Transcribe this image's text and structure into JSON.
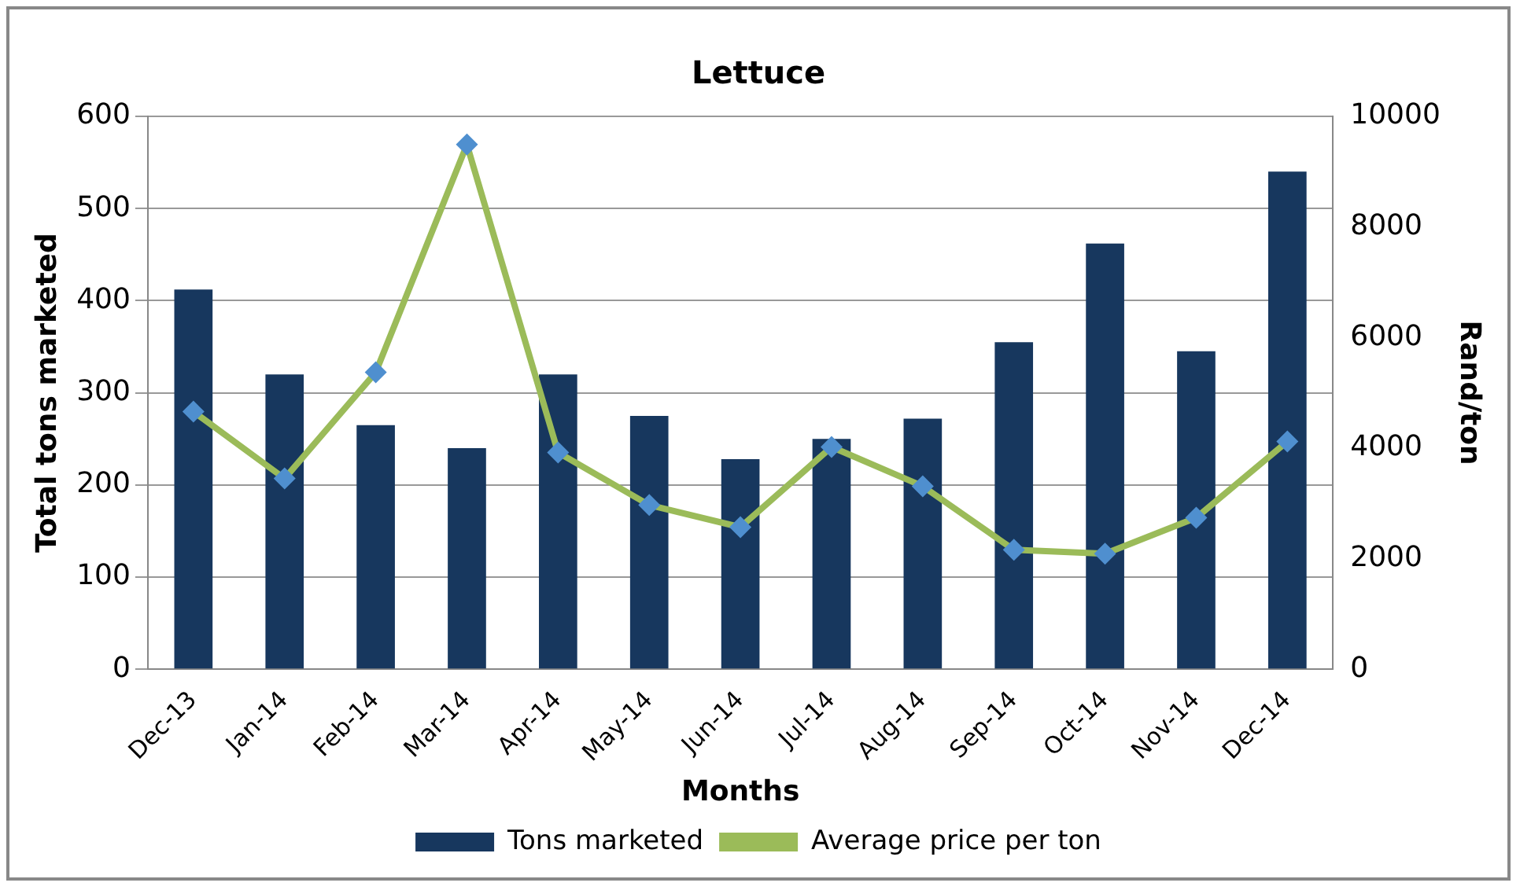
{
  "chart_data": {
    "type": "bar",
    "title": "Lettuce",
    "xlabel": "Months",
    "ylabel": "Total tons marketed",
    "y2label": "Rand/ton",
    "categories": [
      "Dec-13",
      "Jan-14",
      "Feb-14",
      "Mar-14",
      "Apr-14",
      "May-14",
      "Jun-14",
      "Jul-14",
      "Aug-14",
      "Sep-14",
      "Oct-14",
      "Nov-14",
      "Dec-14"
    ],
    "series": [
      {
        "name": "Tons marketed",
        "color": "#17375e",
        "values": [
          412,
          320,
          265,
          240,
          320,
          275,
          228,
          250,
          272,
          355,
          462,
          345,
          540
        ]
      },
      {
        "name": "Average price per ton",
        "type": "line",
        "axis": "y2",
        "color": "#9bbb59",
        "values": [
          4660,
          3450,
          5370,
          9490,
          3920,
          2970,
          2570,
          4020,
          3310,
          2160,
          2090,
          2740,
          4120
        ]
      }
    ],
    "ylim": [
      0,
      600
    ],
    "yticks": [
      0,
      100,
      200,
      300,
      400,
      500,
      600
    ],
    "y2lim": [
      0,
      10000
    ],
    "y2ticks": [
      0,
      2000,
      4000,
      6000,
      8000,
      10000
    ],
    "grid": "y",
    "legend": "bottom",
    "marker": "diamond",
    "line_style": "solid"
  }
}
